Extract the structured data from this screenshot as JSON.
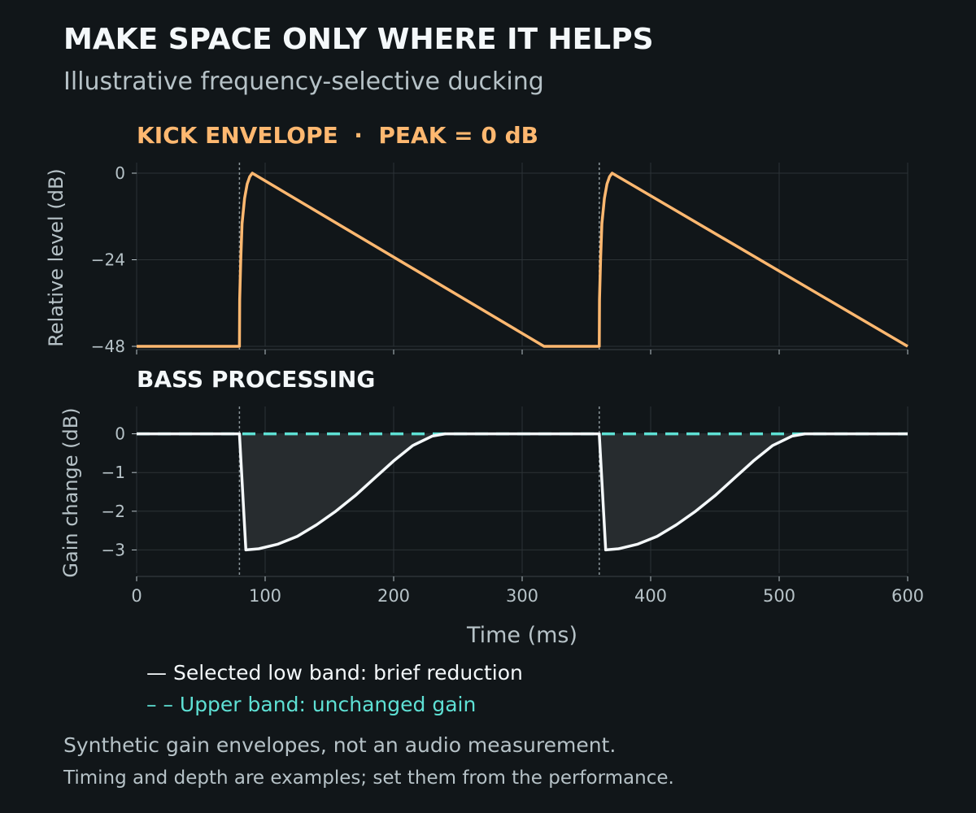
{
  "header": {
    "title": "MAKE SPACE ONLY WHERE IT HELPS",
    "subtitle": "Illustrative frequency-selective ducking"
  },
  "colors": {
    "background": "#111619",
    "kick": "#ffb870",
    "low_band": "#f4f8fa",
    "upper_band": "#5ee0d4",
    "fill": "#272c2f",
    "grid": "#2c3236",
    "axis_text": "#b6c2c7"
  },
  "chart_data": [
    {
      "type": "line",
      "title": "KICK ENVELOPE  ·  PEAK = 0 dB",
      "xlabel": "",
      "ylabel": "Relative level (dB)",
      "xlim": [
        0,
        600
      ],
      "ylim": [
        -48,
        0
      ],
      "yticks": [
        "0",
        "−24",
        "−48"
      ],
      "ytick_values": [
        0,
        -24,
        -48
      ],
      "grid": true,
      "markers_x": [
        80,
        360
      ],
      "series": [
        {
          "x": [
            0,
            80,
            80.2,
            81,
            82,
            84,
            86,
            88,
            90,
            317,
            360,
            360.2,
            361,
            362,
            364,
            366,
            368,
            370,
            600
          ],
          "y": [
            -48,
            -48,
            -35,
            -24,
            -14,
            -7,
            -3,
            -1,
            0,
            -48,
            -48,
            -35,
            -24,
            -14,
            -7,
            -3,
            -1,
            0,
            -48
          ]
        }
      ]
    },
    {
      "type": "line",
      "title": "BASS PROCESSING",
      "xlabel": "Time (ms)",
      "ylabel": "Gain change (dB)",
      "xlim": [
        0,
        600
      ],
      "ylim": [
        -3.6,
        0.6
      ],
      "xticks": [
        0,
        100,
        200,
        300,
        400,
        500,
        600
      ],
      "yticks": [
        "0",
        "−1",
        "−2",
        "−3"
      ],
      "ytick_values": [
        0,
        -1,
        -2,
        -3
      ],
      "grid": true,
      "markers_x": [
        80,
        360
      ],
      "series": [
        {
          "name": "Selected low band: brief reduction",
          "x": [
            0,
            80,
            85,
            95,
            110,
            125,
            140,
            155,
            170,
            185,
            200,
            215,
            230,
            240,
            360,
            365,
            375,
            390,
            405,
            420,
            435,
            450,
            465,
            480,
            495,
            510,
            520,
            600
          ],
          "y": [
            0,
            0,
            -3,
            -2.97,
            -2.85,
            -2.65,
            -2.35,
            -2.0,
            -1.6,
            -1.15,
            -0.7,
            -0.3,
            -0.06,
            0,
            0,
            -3,
            -2.97,
            -2.85,
            -2.65,
            -2.35,
            -2.0,
            -1.6,
            -1.15,
            -0.7,
            -0.3,
            -0.06,
            0,
            0
          ]
        },
        {
          "name": "Upper band: unchanged gain",
          "x": [
            0,
            600
          ],
          "y": [
            0,
            0
          ]
        }
      ]
    }
  ],
  "legend": {
    "low_band": "— Selected low band: brief reduction",
    "upper_band": "– – Upper band: unchanged gain"
  },
  "footer": {
    "note1": "Synthetic gain envelopes, not an audio measurement.",
    "note2": "Timing and depth are examples; set them from the performance."
  }
}
